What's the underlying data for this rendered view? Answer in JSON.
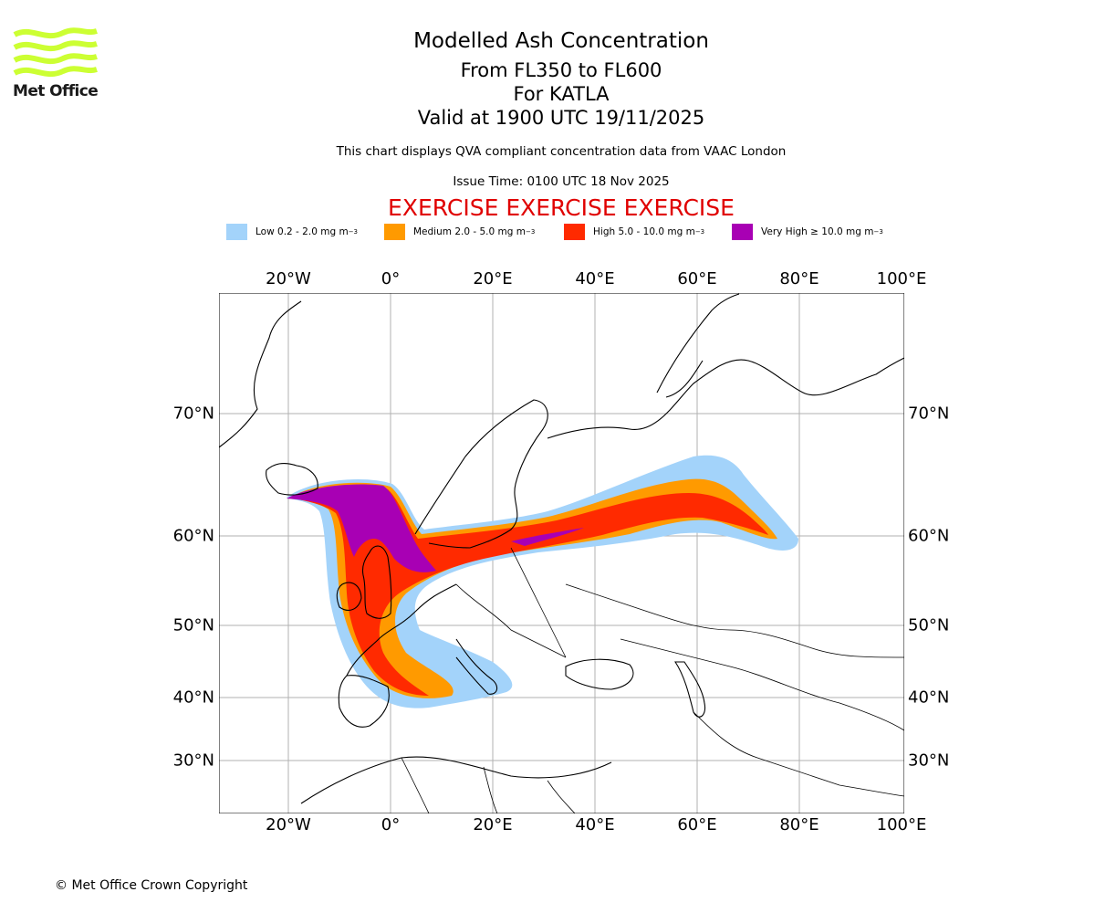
{
  "header": {
    "title": "Modelled Ash Concentration",
    "line2": "From FL350 to FL600",
    "line3": "For KATLA",
    "line4": "Valid at 1900 UTC 19/11/2025",
    "description": "This chart displays QVA compliant concentration data from VAAC London",
    "issue_time": "Issue Time: 0100 UTC 18 Nov 2025",
    "exercise_banner": "EXERCISE EXERCISE EXERCISE"
  },
  "logo": {
    "text": "Met Office",
    "color": "#ccff33"
  },
  "legend": [
    {
      "label": "Low 0.2 - 2.0 mg m",
      "sup": "−3",
      "color": "#a3d3fa"
    },
    {
      "label": "Medium 2.0 - 5.0 mg m",
      "sup": "−3",
      "color": "#ff9a00"
    },
    {
      "label": "High 5.0 - 10.0 mg m",
      "sup": "−3",
      "color": "#ff2a00"
    },
    {
      "label": "Very High  ≥  10.0 mg m",
      "sup": "−3",
      "color": "#a800b4"
    }
  ],
  "map": {
    "lon_ticks": [
      "20°W",
      "0°",
      "20°E",
      "40°E",
      "60°E",
      "80°E",
      "100°E"
    ],
    "lat_ticks": [
      "70°N",
      "60°N",
      "50°N",
      "40°N",
      "30°N"
    ],
    "volcano": "KATLA",
    "gridlines": true
  },
  "footer": {
    "copyright": "© Met Office Crown Copyright"
  }
}
